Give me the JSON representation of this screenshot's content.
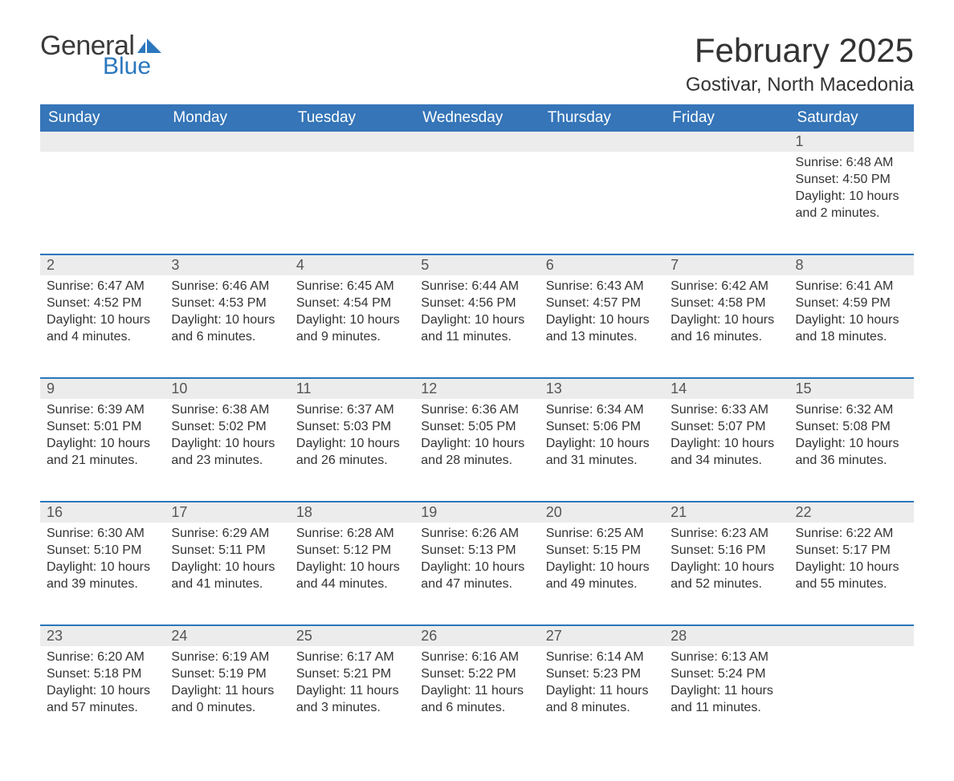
{
  "brand": {
    "general": "General",
    "blue": "Blue",
    "flag_color": "#2b77bd"
  },
  "title": "February 2025",
  "location": "Gostivar, North Macedonia",
  "colors": {
    "header_bg": "#3575b8",
    "header_text": "#ffffff",
    "row_divider": "#2b77bd",
    "daynum_bg": "#ececec",
    "text": "#333333",
    "background": "#ffffff"
  },
  "typography": {
    "title_fontsize": 42,
    "location_fontsize": 24,
    "header_fontsize": 19,
    "cell_fontsize": 16,
    "daynum_fontsize": 18,
    "font_family": "Arial"
  },
  "layout": {
    "columns": 7,
    "weeks": 5,
    "first_day_column_index": 6
  },
  "day_headers": [
    "Sunday",
    "Monday",
    "Tuesday",
    "Wednesday",
    "Thursday",
    "Friday",
    "Saturday"
  ],
  "label_sunrise": "Sunrise",
  "label_sunset": "Sunset",
  "label_daylight": "Daylight",
  "days": [
    {
      "n": 1,
      "sunrise": "6:48 AM",
      "sunset": "4:50 PM",
      "daylight": "10 hours and 2 minutes."
    },
    {
      "n": 2,
      "sunrise": "6:47 AM",
      "sunset": "4:52 PM",
      "daylight": "10 hours and 4 minutes."
    },
    {
      "n": 3,
      "sunrise": "6:46 AM",
      "sunset": "4:53 PM",
      "daylight": "10 hours and 6 minutes."
    },
    {
      "n": 4,
      "sunrise": "6:45 AM",
      "sunset": "4:54 PM",
      "daylight": "10 hours and 9 minutes."
    },
    {
      "n": 5,
      "sunrise": "6:44 AM",
      "sunset": "4:56 PM",
      "daylight": "10 hours and 11 minutes."
    },
    {
      "n": 6,
      "sunrise": "6:43 AM",
      "sunset": "4:57 PM",
      "daylight": "10 hours and 13 minutes."
    },
    {
      "n": 7,
      "sunrise": "6:42 AM",
      "sunset": "4:58 PM",
      "daylight": "10 hours and 16 minutes."
    },
    {
      "n": 8,
      "sunrise": "6:41 AM",
      "sunset": "4:59 PM",
      "daylight": "10 hours and 18 minutes."
    },
    {
      "n": 9,
      "sunrise": "6:39 AM",
      "sunset": "5:01 PM",
      "daylight": "10 hours and 21 minutes."
    },
    {
      "n": 10,
      "sunrise": "6:38 AM",
      "sunset": "5:02 PM",
      "daylight": "10 hours and 23 minutes."
    },
    {
      "n": 11,
      "sunrise": "6:37 AM",
      "sunset": "5:03 PM",
      "daylight": "10 hours and 26 minutes."
    },
    {
      "n": 12,
      "sunrise": "6:36 AM",
      "sunset": "5:05 PM",
      "daylight": "10 hours and 28 minutes."
    },
    {
      "n": 13,
      "sunrise": "6:34 AM",
      "sunset": "5:06 PM",
      "daylight": "10 hours and 31 minutes."
    },
    {
      "n": 14,
      "sunrise": "6:33 AM",
      "sunset": "5:07 PM",
      "daylight": "10 hours and 34 minutes."
    },
    {
      "n": 15,
      "sunrise": "6:32 AM",
      "sunset": "5:08 PM",
      "daylight": "10 hours and 36 minutes."
    },
    {
      "n": 16,
      "sunrise": "6:30 AM",
      "sunset": "5:10 PM",
      "daylight": "10 hours and 39 minutes."
    },
    {
      "n": 17,
      "sunrise": "6:29 AM",
      "sunset": "5:11 PM",
      "daylight": "10 hours and 41 minutes."
    },
    {
      "n": 18,
      "sunrise": "6:28 AM",
      "sunset": "5:12 PM",
      "daylight": "10 hours and 44 minutes."
    },
    {
      "n": 19,
      "sunrise": "6:26 AM",
      "sunset": "5:13 PM",
      "daylight": "10 hours and 47 minutes."
    },
    {
      "n": 20,
      "sunrise": "6:25 AM",
      "sunset": "5:15 PM",
      "daylight": "10 hours and 49 minutes."
    },
    {
      "n": 21,
      "sunrise": "6:23 AM",
      "sunset": "5:16 PM",
      "daylight": "10 hours and 52 minutes."
    },
    {
      "n": 22,
      "sunrise": "6:22 AM",
      "sunset": "5:17 PM",
      "daylight": "10 hours and 55 minutes."
    },
    {
      "n": 23,
      "sunrise": "6:20 AM",
      "sunset": "5:18 PM",
      "daylight": "10 hours and 57 minutes."
    },
    {
      "n": 24,
      "sunrise": "6:19 AM",
      "sunset": "5:19 PM",
      "daylight": "11 hours and 0 minutes."
    },
    {
      "n": 25,
      "sunrise": "6:17 AM",
      "sunset": "5:21 PM",
      "daylight": "11 hours and 3 minutes."
    },
    {
      "n": 26,
      "sunrise": "6:16 AM",
      "sunset": "5:22 PM",
      "daylight": "11 hours and 6 minutes."
    },
    {
      "n": 27,
      "sunrise": "6:14 AM",
      "sunset": "5:23 PM",
      "daylight": "11 hours and 8 minutes."
    },
    {
      "n": 28,
      "sunrise": "6:13 AM",
      "sunset": "5:24 PM",
      "daylight": "11 hours and 11 minutes."
    }
  ]
}
